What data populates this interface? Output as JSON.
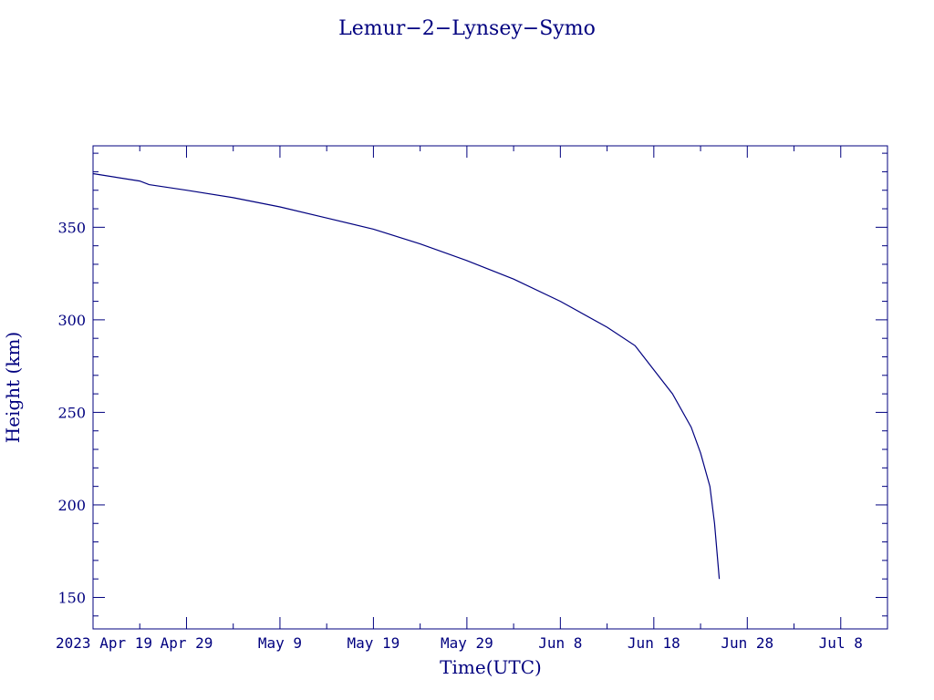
{
  "chart_data": {
    "type": "line",
    "title": "Lemur−2−Lynsey−Symo",
    "xlabel": "Time(UTC)",
    "ylabel": "Height (km)",
    "x_ticks": [
      "2023 Apr 19",
      "Apr 29",
      "May  9",
      "May 19",
      "May 29",
      "Jun  8",
      "Jun 18",
      "Jun 28",
      "Jul  8"
    ],
    "x_range": [
      "2023-04-19",
      "2023-07-13"
    ],
    "y_ticks": [
      150,
      200,
      250,
      300,
      350
    ],
    "y_range": [
      133,
      394
    ],
    "grid": false,
    "series": [
      {
        "color": "#00007f",
        "points": [
          [
            "2023-04-19",
            379
          ],
          [
            "2023-04-24",
            375
          ],
          [
            "2023-04-25",
            373
          ],
          [
            "2023-04-29",
            370
          ],
          [
            "2023-05-04",
            366
          ],
          [
            "2023-05-09",
            361
          ],
          [
            "2023-05-14",
            355
          ],
          [
            "2023-05-19",
            349
          ],
          [
            "2023-05-24",
            341
          ],
          [
            "2023-05-29",
            332
          ],
          [
            "2023-06-03",
            322
          ],
          [
            "2023-06-08",
            310
          ],
          [
            "2023-06-13",
            296
          ],
          [
            "2023-06-16",
            286
          ],
          [
            "2023-06-18",
            273
          ],
          [
            "2023-06-20",
            260
          ],
          [
            "2023-06-22",
            242
          ],
          [
            "2023-06-23",
            228
          ],
          [
            "2023-06-24",
            210
          ],
          [
            "2023-06-24T12:00",
            190
          ],
          [
            "2023-06-25",
            160
          ]
        ]
      }
    ]
  }
}
